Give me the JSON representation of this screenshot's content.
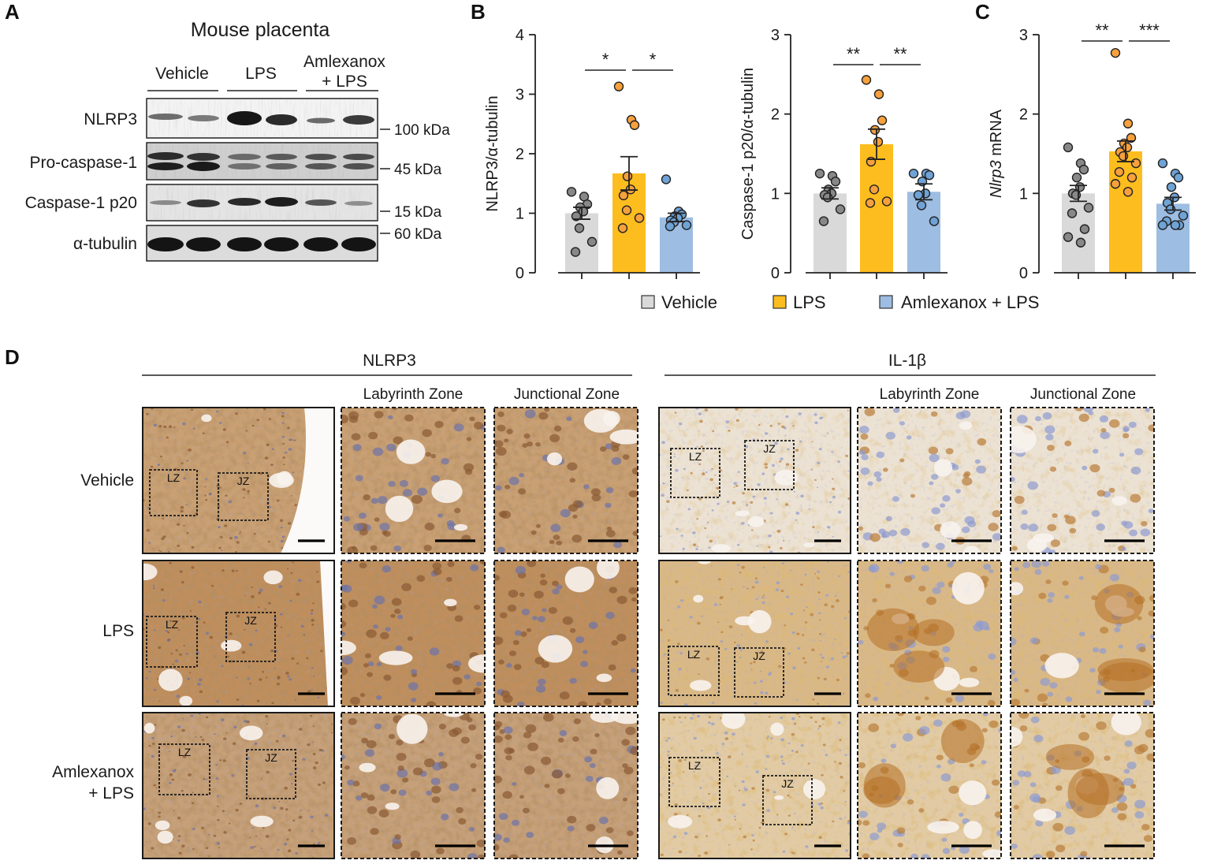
{
  "panels": {
    "a": "A",
    "b": "B",
    "c": "C",
    "d": "D"
  },
  "blot": {
    "title": "Mouse placenta",
    "groups": [
      "Vehicle",
      "LPS",
      "Amlexanox"
    ],
    "group3_line2": "+ LPS",
    "rows": [
      "NLRP3",
      "Pro-caspase-1",
      "Caspase-1  p20",
      "α-tubulin"
    ],
    "markers": [
      "100 kDa",
      "45 kDa",
      "15 kDa",
      "60 kDa"
    ]
  },
  "legend": {
    "items": [
      {
        "label": "Vehicle",
        "color": "#d9d9d9"
      },
      {
        "label": "LPS",
        "color": "#fdbd1e"
      },
      {
        "label": "Amlexanox + LPS",
        "color": "#9dbde2"
      }
    ]
  },
  "colors": {
    "vehicle": "#d9d9d9",
    "lps": "#fdbd1e",
    "amlexanox": "#9dbde2",
    "dot_vehicle": "#888888",
    "dot_lps": "#f6a13d",
    "dot_amlexanox": "#6fa3d6"
  },
  "chart_data": [
    {
      "type": "bar",
      "panel": "B",
      "ylabel": "NLRP3/α-tubulin",
      "ylim": [
        0,
        4
      ],
      "yticks": [
        "0",
        "1",
        "2",
        "3",
        "4"
      ],
      "categories": [
        "Vehicle",
        "LPS",
        "Amlexanox + LPS"
      ],
      "values": [
        1.0,
        1.67,
        0.93
      ],
      "sem": [
        0.1,
        0.28,
        0.07
      ],
      "points": [
        [
          1.36,
          1.28,
          1.15,
          1.1,
          1.03,
          0.95,
          0.75,
          0.52,
          0.35
        ],
        [
          3.13,
          2.57,
          2.48,
          1.62,
          1.4,
          1.3,
          1.05,
          0.92,
          0.75
        ],
        [
          1.57,
          1.03,
          0.98,
          0.95,
          0.92,
          0.88,
          0.85,
          0.8,
          0.78
        ]
      ],
      "significance": [
        {
          "from": 0,
          "to": 1,
          "label": "*"
        },
        {
          "from": 1,
          "to": 2,
          "label": "*"
        }
      ]
    },
    {
      "type": "bar",
      "panel": "B",
      "ylabel": "Caspase-1  p20/α-tubulin",
      "ylim": [
        0,
        3
      ],
      "yticks": [
        "0",
        "1",
        "2",
        "3"
      ],
      "categories": [
        "Vehicle",
        "LPS",
        "Amlexanox + LPS"
      ],
      "values": [
        1.0,
        1.62,
        1.02
      ],
      "sem": [
        0.07,
        0.19,
        0.1
      ],
      "points": [
        [
          1.25,
          1.22,
          1.15,
          1.05,
          1.0,
          0.98,
          0.95,
          0.8,
          0.65
        ],
        [
          2.43,
          2.25,
          1.92,
          1.8,
          1.65,
          1.4,
          1.05,
          0.9,
          0.88
        ],
        [
          1.25,
          1.25,
          1.23,
          1.15,
          1.0,
          0.98,
          0.85,
          0.65
        ]
      ],
      "significance": [
        {
          "from": 0,
          "to": 1,
          "label": "**"
        },
        {
          "from": 1,
          "to": 2,
          "label": "**"
        }
      ]
    },
    {
      "type": "bar",
      "panel": "C",
      "ylabel": "Nlrp3 mRNA",
      "ylabel_italic": "Nlrp3",
      "ylabel_rest": " mRNA",
      "ylim": [
        0,
        3
      ],
      "yticks": [
        "0",
        "1",
        "2",
        "3"
      ],
      "categories": [
        "Vehicle",
        "LPS",
        "Amlexanox + LPS"
      ],
      "values": [
        1.0,
        1.53,
        0.87
      ],
      "sem": [
        0.1,
        0.13,
        0.08
      ],
      "points": [
        [
          1.58,
          1.38,
          1.3,
          1.2,
          1.08,
          1.0,
          0.98,
          0.82,
          0.75,
          0.55,
          0.45,
          0.38
        ],
        [
          2.77,
          1.88,
          1.7,
          1.63,
          1.58,
          1.52,
          1.47,
          1.38,
          1.27,
          1.2,
          1.12,
          1.02
        ],
        [
          1.38,
          1.25,
          1.2,
          1.08,
          0.95,
          0.88,
          0.8,
          0.72,
          0.65,
          0.6,
          0.6,
          0.6
        ]
      ],
      "significance": [
        {
          "from": 0,
          "to": 1,
          "label": "**"
        },
        {
          "from": 1,
          "to": 2,
          "label": "***"
        }
      ]
    }
  ],
  "ihc": {
    "headers": [
      "NLRP3",
      "IL-1β"
    ],
    "zone_headers": [
      "Labyrinth  Zone",
      "Junctional Zone"
    ],
    "row_labels": [
      [
        "Vehicle"
      ],
      [
        "LPS"
      ],
      [
        "Amlexanox",
        "+ LPS"
      ]
    ],
    "box_labels": [
      "LZ",
      "JZ"
    ]
  }
}
